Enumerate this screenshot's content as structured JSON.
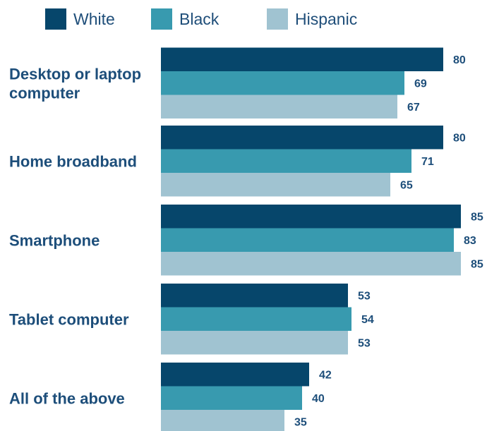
{
  "chart_data": {
    "type": "bar",
    "orientation": "horizontal",
    "categories": [
      [
        "Desktop or laptop",
        "computer"
      ],
      [
        "Home broadband"
      ],
      [
        "Smartphone"
      ],
      [
        "Tablet computer"
      ],
      [
        "All of the above"
      ]
    ],
    "series": [
      {
        "name": "White",
        "color": "#06466b",
        "values": [
          80,
          80,
          85,
          53,
          42
        ]
      },
      {
        "name": "Black",
        "color": "#389aaf",
        "values": [
          69,
          71,
          83,
          54,
          40
        ]
      },
      {
        "name": "Hispanic",
        "color": "#a0c3d1",
        "values": [
          67,
          65,
          85,
          53,
          35
        ]
      }
    ],
    "legend_position": "top",
    "grid": false,
    "xlim": [
      0,
      85
    ]
  }
}
